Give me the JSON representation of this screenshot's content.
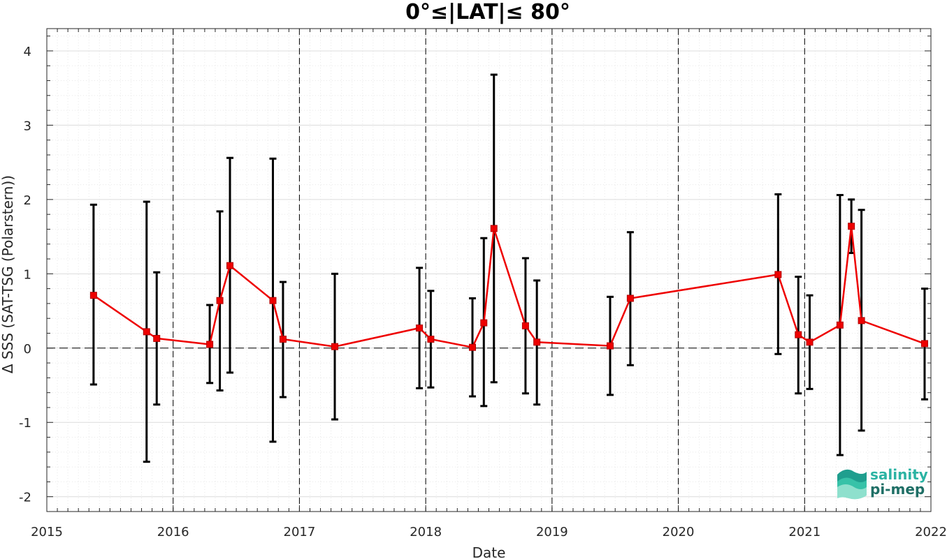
{
  "chart_data": {
    "type": "line",
    "title": "0°≤|LAT|≤ 80°",
    "xlabel": "Date",
    "ylabel": "Δ SSS (SAT-TSG (Polarstern))",
    "xlim": [
      2015,
      2022
    ],
    "ylim": [
      -2.2,
      4.3
    ],
    "x_ticks": [
      "2015",
      "2016",
      "2017",
      "2018",
      "2019",
      "2020",
      "2021",
      "2022"
    ],
    "y_ticks": [
      "-2",
      "-1",
      "0",
      "1",
      "2",
      "3",
      "4"
    ],
    "grid": true,
    "year_dividers": [
      2016,
      2017,
      2018,
      2019,
      2020,
      2021
    ],
    "zero_line": 0,
    "series": [
      {
        "color": "#ee0000",
        "marker": "square",
        "error_bar_color": "#000000",
        "points": [
          {
            "x": 2015.37,
            "y": 0.71,
            "low": -0.49,
            "high": 1.93
          },
          {
            "x": 2015.79,
            "y": 0.22,
            "low": -1.53,
            "high": 1.97
          },
          {
            "x": 2015.87,
            "y": 0.13,
            "low": -0.76,
            "high": 1.02
          },
          {
            "x": 2016.29,
            "y": 0.05,
            "low": -0.47,
            "high": 0.58
          },
          {
            "x": 2016.37,
            "y": 0.64,
            "low": -0.57,
            "high": 1.84
          },
          {
            "x": 2016.45,
            "y": 1.11,
            "low": -0.33,
            "high": 2.56
          },
          {
            "x": 2016.79,
            "y": 0.64,
            "low": -1.26,
            "high": 2.55
          },
          {
            "x": 2016.87,
            "y": 0.12,
            "low": -0.66,
            "high": 0.89
          },
          {
            "x": 2017.28,
            "y": 0.02,
            "low": -0.96,
            "high": 1.0
          },
          {
            "x": 2017.95,
            "y": 0.27,
            "low": -0.54,
            "high": 1.08
          },
          {
            "x": 2018.04,
            "y": 0.12,
            "low": -0.53,
            "high": 0.77
          },
          {
            "x": 2018.37,
            "y": 0.01,
            "low": -0.65,
            "high": 0.67
          },
          {
            "x": 2018.46,
            "y": 0.34,
            "low": -0.78,
            "high": 1.48
          },
          {
            "x": 2018.54,
            "y": 1.61,
            "low": -0.46,
            "high": 3.68
          },
          {
            "x": 2018.79,
            "y": 0.3,
            "low": -0.61,
            "high": 1.21
          },
          {
            "x": 2018.88,
            "y": 0.08,
            "low": -0.76,
            "high": 0.91
          },
          {
            "x": 2019.46,
            "y": 0.03,
            "low": -0.63,
            "high": 0.69
          },
          {
            "x": 2019.62,
            "y": 0.67,
            "low": -0.23,
            "high": 1.56
          },
          {
            "x": 2020.79,
            "y": 0.99,
            "low": -0.08,
            "high": 2.07
          },
          {
            "x": 2020.95,
            "y": 0.18,
            "low": -0.61,
            "high": 0.96
          },
          {
            "x": 2021.04,
            "y": 0.08,
            "low": -0.55,
            "high": 0.71
          },
          {
            "x": 2021.28,
            "y": 0.31,
            "low": -1.44,
            "high": 2.06
          },
          {
            "x": 2021.37,
            "y": 1.64,
            "low": 1.28,
            "high": 2.0
          },
          {
            "x": 2021.45,
            "y": 0.37,
            "low": -1.11,
            "high": 1.86
          },
          {
            "x": 2021.95,
            "y": 0.06,
            "low": -0.69,
            "high": 0.8
          }
        ]
      }
    ]
  },
  "logo": {
    "line1": "salinity",
    "line2": "pi-mep"
  }
}
